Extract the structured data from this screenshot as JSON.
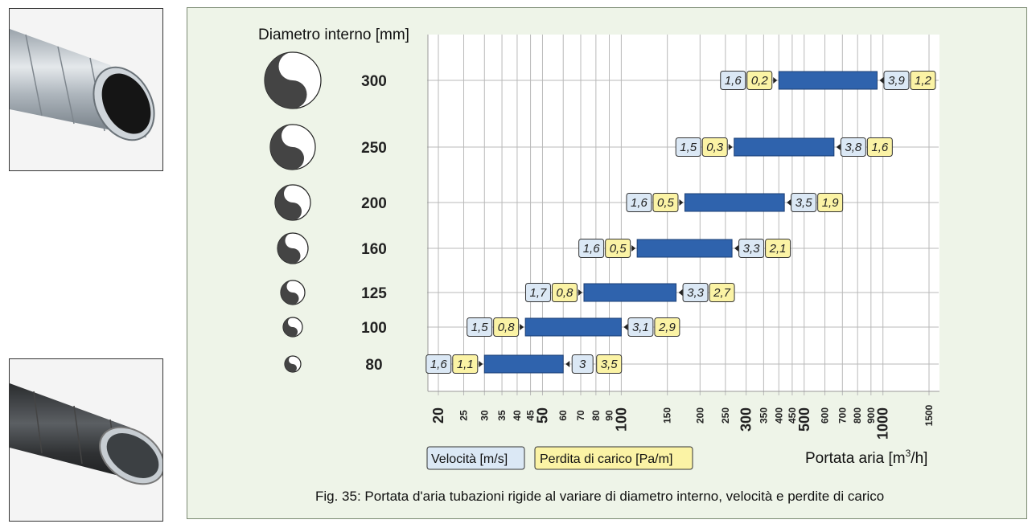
{
  "chart_data": {
    "type": "bar",
    "orientation": "horizontal",
    "x_scale": "log",
    "grid": true,
    "y_title": "Diametro interno [mm]",
    "x_title": "Portata aria [m",
    "x_title_sup": "3",
    "x_title_end": "/h]",
    "xlim": [
      20,
      1500
    ],
    "x_ticks_small": [
      "25",
      "30",
      "35",
      "40",
      "45",
      "60",
      "70",
      "80",
      "90",
      "150",
      "200",
      "250",
      "350",
      "400",
      "450",
      "600",
      "700",
      "800",
      "900",
      "1500"
    ],
    "x_ticks_big": [
      "20",
      "50",
      "100",
      "300",
      "500",
      "1000"
    ],
    "legend": {
      "velocita": "Velocità [m/s]",
      "perdita": "Perdita di carico [Pa/m]"
    },
    "caption": "Fig. 35: Portata d'aria tubazioni rigide al variare di diametro interno, velocità e perdite di carico",
    "colors": {
      "bar": "#2f63ad",
      "velocita_box": "#dbe8f5",
      "perdita_box": "#fbf3a5",
      "panel": "#eef4e8"
    },
    "rows": [
      {
        "diameter": "300",
        "min": 400,
        "max": 950,
        "v_min": "1,6",
        "p_min": "0,2",
        "v_max": "3,9",
        "p_max": "1,2"
      },
      {
        "diameter": "250",
        "min": 270,
        "max": 650,
        "v_min": "1,5",
        "p_min": "0,3",
        "v_max": "3,8",
        "p_max": "1,6"
      },
      {
        "diameter": "200",
        "min": 175,
        "max": 420,
        "v_min": "1,6",
        "p_min": "0,5",
        "v_max": "3,5",
        "p_max": "1,9"
      },
      {
        "diameter": "160",
        "min": 115,
        "max": 265,
        "v_min": "1,6",
        "p_min": "0,5",
        "v_max": "3,3",
        "p_max": "2,1"
      },
      {
        "diameter": "125",
        "min": 72,
        "max": 162,
        "v_min": "1,7",
        "p_min": "0,8",
        "v_max": "3,3",
        "p_max": "2,7"
      },
      {
        "diameter": "100",
        "min": 43,
        "max": 100,
        "v_min": "1,5",
        "p_min": "0,8",
        "v_max": "3,1",
        "p_max": "2,9"
      },
      {
        "diameter": "80",
        "min": 30,
        "max": 60,
        "v_min": "1,6",
        "p_min": "1,1",
        "v_max": "3",
        "p_max": "3,5"
      }
    ]
  }
}
